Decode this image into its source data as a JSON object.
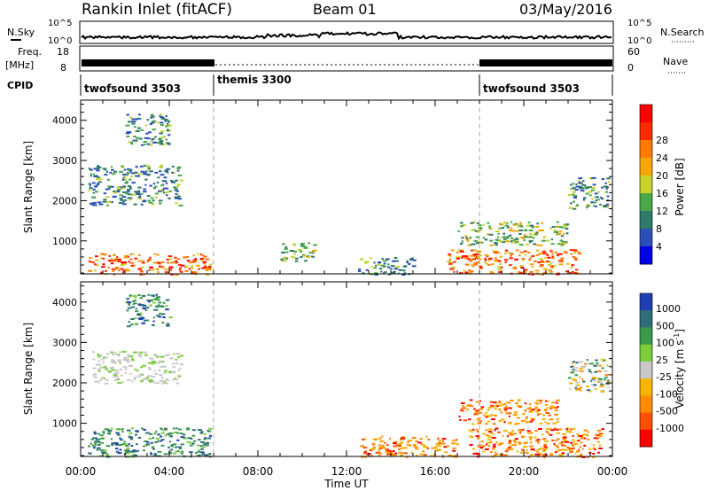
{
  "header": {
    "station": "Rankin Inlet (fitACF)",
    "beam": "Beam 01",
    "date": "03/May/2016"
  },
  "strip_panels": {
    "nsky": {
      "left_label": "N.Sky",
      "right_label": "N.Search",
      "left_ticks": [
        "10^5",
        "10^0"
      ],
      "right_ticks": [
        "10^5",
        "10^0"
      ]
    },
    "freq": {
      "left_label_line1": "Freq.",
      "left_label_line2": "[MHz]",
      "left_ticks": [
        "18",
        "8"
      ],
      "right_label": "Nave",
      "right_ticks": [
        "60",
        "0"
      ]
    },
    "cpid": {
      "label": "CPID",
      "segments": [
        {
          "name": "twofsound 3503",
          "start_hour": 0,
          "end_hour": 6
        },
        {
          "name": "themis 3300",
          "start_hour": 6,
          "end_hour": 18
        },
        {
          "name": "twofsound 3503",
          "start_hour": 18,
          "end_hour": 24
        }
      ]
    }
  },
  "chart_data": [
    {
      "type": "heatmap",
      "title": "",
      "parameter": "Power",
      "xlabel": "Time UT",
      "ylabel": "Slant Range [km]",
      "colorbar_label": "Power [dB]",
      "x_ticks": [
        "00:00",
        "04:00",
        "08:00",
        "12:00",
        "16:00",
        "20:00",
        "00:00"
      ],
      "xlim_hours": [
        0,
        24
      ],
      "y_ticks": [
        1000,
        2000,
        3000,
        4000
      ],
      "ylim_km": [
        180,
        4500
      ],
      "colorbar_ticks": [
        "4",
        "8",
        "12",
        "16",
        "20",
        "24",
        "28"
      ],
      "colorbar_colors": [
        "#0000e8",
        "#2a4fb8",
        "#2f7a68",
        "#4aa84a",
        "#c7d22a",
        "#f6a60a",
        "#ff7a00",
        "#ff2a00",
        "#ff0000"
      ],
      "mode_change_hours": [
        6,
        18
      ],
      "scatter_regions_hours_km": [
        {
          "t": [
            0.3,
            5.8
          ],
          "r": [
            180,
            700
          ],
          "level": "high"
        },
        {
          "t": [
            0.3,
            4.5
          ],
          "r": [
            1900,
            2900
          ],
          "level": "low"
        },
        {
          "t": [
            2.0,
            4.0
          ],
          "r": [
            3400,
            4200
          ],
          "level": "low"
        },
        {
          "t": [
            9.0,
            10.5
          ],
          "r": [
            500,
            1000
          ],
          "level": "mid"
        },
        {
          "t": [
            12.5,
            15.0
          ],
          "r": [
            180,
            600
          ],
          "level": "low"
        },
        {
          "t": [
            16.5,
            22.5
          ],
          "r": [
            180,
            800
          ],
          "level": "high"
        },
        {
          "t": [
            17.0,
            22.0
          ],
          "r": [
            900,
            1500
          ],
          "level": "mid"
        },
        {
          "t": [
            22.0,
            23.8
          ],
          "r": [
            1800,
            2600
          ],
          "level": "low"
        }
      ]
    },
    {
      "type": "heatmap",
      "title": "",
      "parameter": "Velocity",
      "xlabel": "Time UT",
      "ylabel": "Slant Range [km]",
      "colorbar_label": "Velocity [m s^-1]",
      "colorbar_label_main": "Velocity [m s",
      "colorbar_label_sup": "-1",
      "colorbar_label_end": "]",
      "x_ticks": [
        "00:00",
        "04:00",
        "08:00",
        "12:00",
        "16:00",
        "20:00",
        "00:00"
      ],
      "xlim_hours": [
        0,
        24
      ],
      "y_ticks": [
        1000,
        2000,
        3000,
        4000
      ],
      "ylim_km": [
        180,
        4500
      ],
      "colorbar_ticks": [
        "1000",
        "500",
        "100",
        "25",
        "-25",
        "-100",
        "-500",
        "-1000"
      ],
      "colorbar_colors": [
        "#1e3fb0",
        "#2f6e78",
        "#3a9a4a",
        "#7ccd3c",
        "#c8c8c8",
        "#f6b400",
        "#ff8c00",
        "#ff5000",
        "#ff0000"
      ],
      "mode_change_hours": [
        6,
        18
      ],
      "scatter_regions_hours_km": [
        {
          "t": [
            0.3,
            5.8
          ],
          "r": [
            180,
            900
          ],
          "level": "positive"
        },
        {
          "t": [
            0.5,
            4.5
          ],
          "r": [
            2000,
            2800
          ],
          "level": "ground"
        },
        {
          "t": [
            2.0,
            4.0
          ],
          "r": [
            3400,
            4200
          ],
          "level": "positive"
        },
        {
          "t": [
            12.5,
            17.0
          ],
          "r": [
            180,
            700
          ],
          "level": "negative"
        },
        {
          "t": [
            17.5,
            23.5
          ],
          "r": [
            180,
            900
          ],
          "level": "negative"
        },
        {
          "t": [
            17.0,
            21.5
          ],
          "r": [
            1000,
            1600
          ],
          "level": "negative"
        },
        {
          "t": [
            22.0,
            23.8
          ],
          "r": [
            1800,
            2600
          ],
          "level": "mixed"
        }
      ]
    }
  ]
}
